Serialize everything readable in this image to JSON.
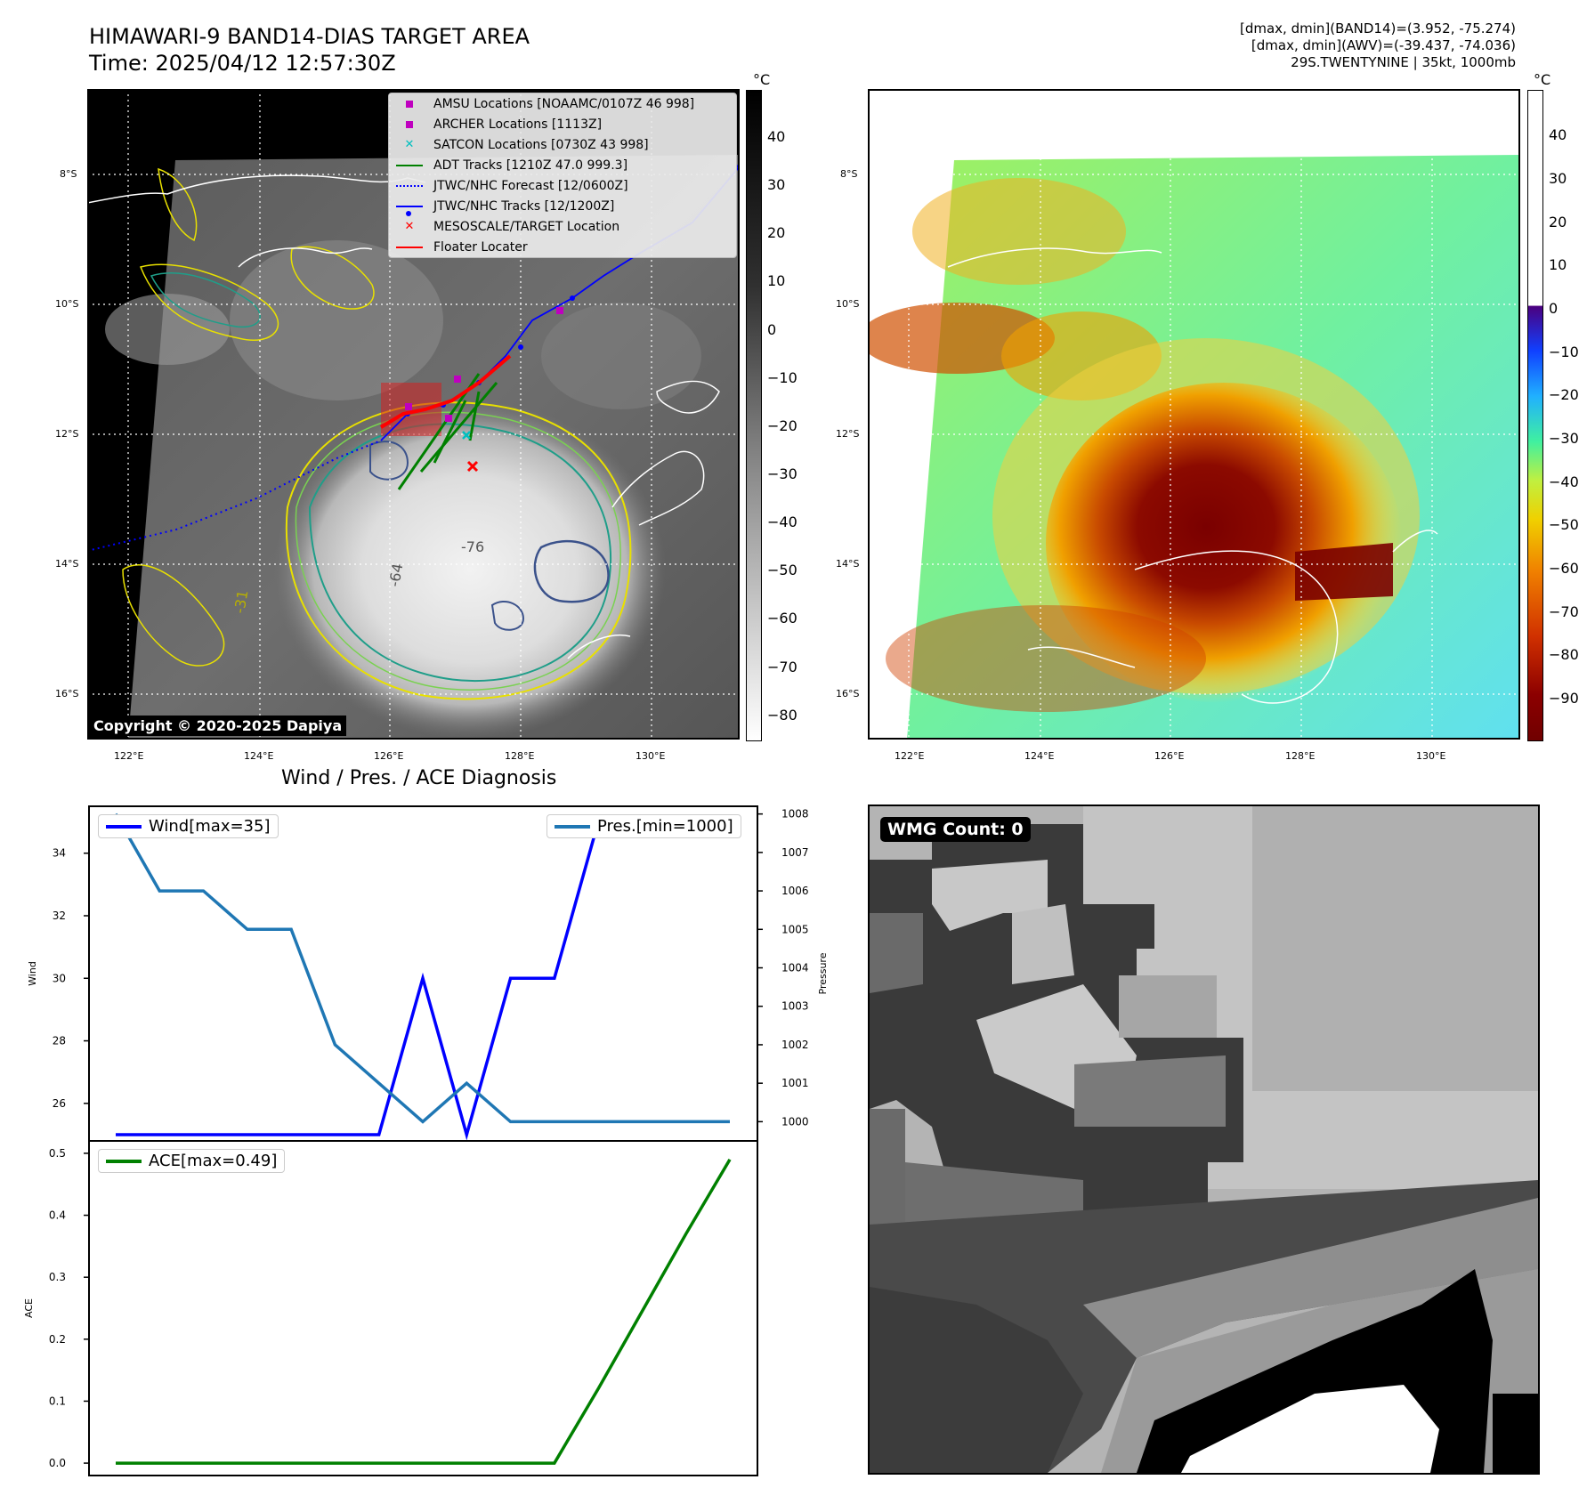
{
  "header": {
    "title_line1": "HIMAWARI-9 BAND14-DIAS TARGET AREA",
    "title_line2": "Time: 2025/04/12 12:57:30Z",
    "info_line1": "[dmax, dmin](BAND14)=(3.952, -75.274)",
    "info_line2": "[dmax, dmin](AWV)=(-39.437, -74.036)",
    "info_line3": "29S.TWENTYNINE | 35kt, 1000mb"
  },
  "map_panel": {
    "lat_labels": [
      "8°S",
      "10°S",
      "12°S",
      "14°S",
      "16°S"
    ],
    "lon_labels": [
      "122°E",
      "124°E",
      "126°E",
      "128°E",
      "130°E"
    ],
    "colorbar_unit": "°C",
    "colorbar_ticks": [
      "40",
      "30",
      "20",
      "10",
      "0",
      "−10",
      "−20",
      "−30",
      "−40",
      "−50",
      "−60",
      "−70",
      "−80"
    ],
    "copyright": "Copyright © 2020-2025 Dapiya",
    "legend": [
      {
        "label": "AMSU Locations [NOAAMC/0107Z 46 998]",
        "symbol": "square",
        "color": "#bf00bf"
      },
      {
        "label": "ARCHER Locations [1113Z]",
        "symbol": "square",
        "color": "#bf00bf"
      },
      {
        "label": "SATCON Locations [0730Z 43 998]",
        "symbol": "x",
        "color": "#00bfbf"
      },
      {
        "label": "ADT Tracks [1210Z 47.0 999.3]",
        "symbol": "line",
        "color": "#008000"
      },
      {
        "label": "JTWC/NHC Forecast [12/0600Z]",
        "symbol": "dotted",
        "color": "#0000ff"
      },
      {
        "label": "JTWC/NHC Tracks [12/1200Z]",
        "symbol": "line-dot",
        "color": "#0000ff"
      },
      {
        "label": "MESOSCALE/TARGET Location",
        "symbol": "x",
        "color": "#ff0000"
      },
      {
        "label": "Floater Locater",
        "symbol": "line",
        "color": "#ff0000"
      }
    ],
    "contour_labels": [
      "-64",
      "-76",
      "-31"
    ]
  },
  "awv_panel": {
    "lat_labels": [
      "8°S",
      "10°S",
      "12°S",
      "14°S",
      "16°S"
    ],
    "lon_labels": [
      "122°E",
      "124°E",
      "126°E",
      "128°E",
      "130°E"
    ],
    "colorbar_unit": "°C",
    "colorbar_ticks": [
      "40",
      "30",
      "20",
      "10",
      "0",
      "−10",
      "−20",
      "−30",
      "−40",
      "−50",
      "−60",
      "−70",
      "−80",
      "−90"
    ]
  },
  "wmg_panel": {
    "label": "WMG Count: 0"
  },
  "chart_data": [
    {
      "type": "line",
      "title": "Wind / Pres. / ACE Diagnosis",
      "ylabel": "Wind",
      "ylabel_right": "Pressure",
      "ylim": [
        24.8,
        35.5
      ],
      "ylim_right": [
        999.5,
        1008.2
      ],
      "yticks": [
        26,
        28,
        30,
        32,
        34
      ],
      "yticks_right": [
        1000,
        1001,
        1002,
        1003,
        1004,
        1005,
        1006,
        1007,
        1008
      ],
      "series": [
        {
          "name": "Wind[max=35]",
          "color": "#0000ff",
          "axis": "left",
          "values": [
            25,
            25,
            25,
            25,
            25,
            25,
            25,
            30,
            25,
            30,
            30,
            35,
            35,
            35,
            35
          ]
        },
        {
          "name": "Pres.[min=1000]",
          "color": "#1f77b4",
          "axis": "right",
          "values": [
            1008,
            1006,
            1006,
            1005,
            1005,
            1002,
            1001,
            1000,
            1001,
            1000,
            1000,
            1000,
            1000,
            1000,
            1000
          ]
        }
      ]
    },
    {
      "type": "line",
      "ylabel": "ACE",
      "ylim": [
        -0.02,
        0.52
      ],
      "yticks": [
        "0.0",
        "0.1",
        "0.2",
        "0.3",
        "0.4",
        "0.5"
      ],
      "series": [
        {
          "name": "ACE[max=0.49]",
          "color": "#008000",
          "values": [
            0,
            0,
            0,
            0,
            0,
            0,
            0,
            0,
            0,
            0,
            0,
            0.12,
            0.245,
            0.37,
            0.49
          ]
        }
      ]
    }
  ]
}
